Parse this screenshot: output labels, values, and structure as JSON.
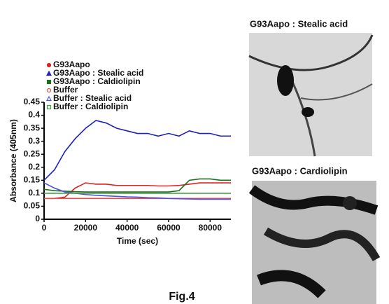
{
  "chart_data": {
    "type": "line",
    "ylabel": "Absorbance (405nm)",
    "xlabel": "Time (sec)",
    "x": [
      0,
      5000,
      10000,
      15000,
      20000,
      25000,
      30000,
      35000,
      40000,
      45000,
      50000,
      55000,
      60000,
      65000,
      70000,
      75000,
      80000,
      85000,
      90000
    ],
    "series": [
      {
        "name": "G93Aapo",
        "color": "#e02020",
        "marker": "dot",
        "values": [
          0.08,
          0.08,
          0.085,
          0.12,
          0.14,
          0.135,
          0.135,
          0.13,
          0.13,
          0.13,
          0.13,
          0.128,
          0.128,
          0.13,
          0.135,
          0.14,
          0.14,
          0.14,
          0.14
        ]
      },
      {
        "name": "G93Aapo : Stealic acid",
        "color": "#2020c0",
        "marker": "triangle",
        "values": [
          0.15,
          0.19,
          0.26,
          0.31,
          0.35,
          0.38,
          0.37,
          0.35,
          0.34,
          0.33,
          0.33,
          0.32,
          0.33,
          0.32,
          0.34,
          0.33,
          0.33,
          0.32,
          0.32
        ]
      },
      {
        "name": "G93Aapo : Caldiolipin",
        "color": "#1f6e1f",
        "marker": "square",
        "values": [
          0.115,
          0.11,
          0.108,
          0.106,
          0.105,
          0.105,
          0.105,
          0.105,
          0.105,
          0.105,
          0.105,
          0.105,
          0.105,
          0.11,
          0.15,
          0.155,
          0.155,
          0.15,
          0.15
        ]
      },
      {
        "name": "Buffer",
        "color": "#e05050",
        "marker": "open-circle",
        "values": [
          0.08,
          0.08,
          0.08,
          0.08,
          0.08,
          0.08,
          0.08,
          0.08,
          0.08,
          0.08,
          0.08,
          0.08,
          0.08,
          0.08,
          0.08,
          0.08,
          0.08,
          0.08,
          0.08
        ]
      },
      {
        "name": "Buffer : Stealic acid",
        "color": "#5050e0",
        "marker": "open-triangle",
        "values": [
          0.14,
          0.12,
          0.105,
          0.1,
          0.095,
          0.092,
          0.09,
          0.088,
          0.086,
          0.085,
          0.083,
          0.082,
          0.08,
          0.079,
          0.078,
          0.077,
          0.077,
          0.077,
          0.077
        ]
      },
      {
        "name": "Buffer : Caldiolipin",
        "color": "#40a040",
        "marker": "open-square",
        "values": [
          0.1,
          0.1,
          0.1,
          0.1,
          0.1,
          0.1,
          0.1,
          0.1,
          0.1,
          0.1,
          0.1,
          0.1,
          0.1,
          0.1,
          0.1,
          0.1,
          0.1,
          0.1,
          0.1
        ]
      }
    ],
    "xlim": [
      0,
      90000
    ],
    "xticks": [
      0,
      20000,
      40000,
      60000,
      80000
    ],
    "ylim": [
      0,
      0.45
    ],
    "yticks": [
      0,
      0.05,
      0.1,
      0.15,
      0.2,
      0.25,
      0.3,
      0.35,
      0.4,
      0.45
    ]
  },
  "panels": [
    {
      "title": "G93Aapo : Stealic acid"
    },
    {
      "title": "G93Aapo : Cardiolipin"
    }
  ],
  "caption": "Fig.4"
}
